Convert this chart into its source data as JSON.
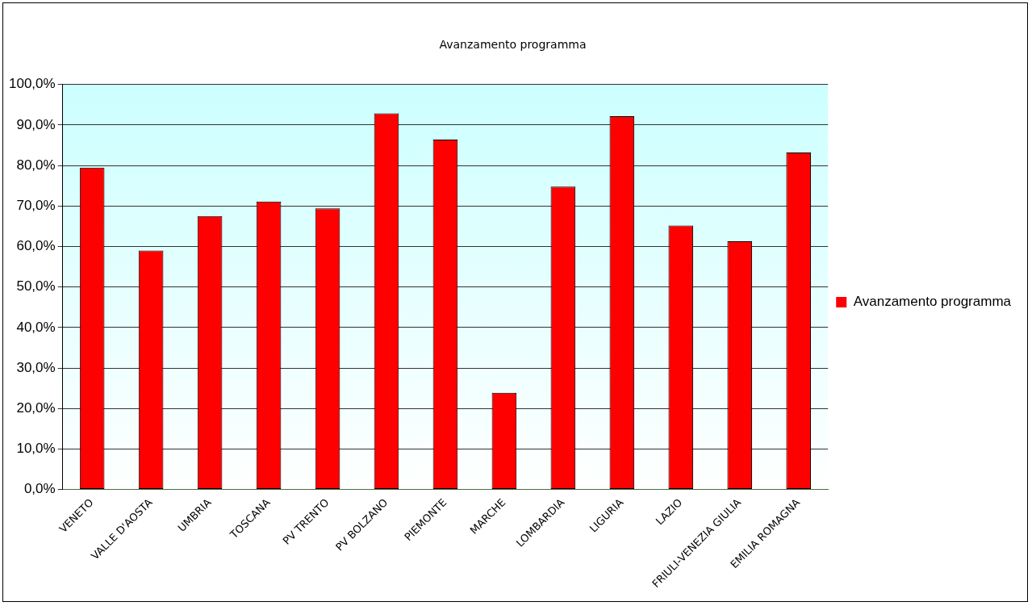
{
  "chart_data": {
    "type": "bar",
    "title": "Avanzamento programma",
    "categories": [
      "VENETO",
      "VALLE D'AOSTA",
      "UMBRIA",
      "TOSCANA",
      "PV TRENTO",
      "PV BOLZANO",
      "PIEMONTE",
      "MARCHE",
      "LOMBARDIA",
      "LIGURIA",
      "LAZIO",
      "FRIULI-VENEZIA GIULIA",
      "EMILIA ROMAGNA"
    ],
    "series": [
      {
        "name": "Avanzamento programma",
        "color": "#ff0000",
        "values": [
          79.5,
          59.0,
          67.5,
          71.1,
          69.4,
          92.9,
          86.4,
          23.9,
          74.8,
          92.2,
          65.2,
          61.3,
          83.2
        ]
      }
    ],
    "ylim": [
      0,
      100
    ],
    "yticks": [
      {
        "value": 0,
        "label": "0,0%"
      },
      {
        "value": 10,
        "label": "10,0%"
      },
      {
        "value": 20,
        "label": "20,0%"
      },
      {
        "value": 30,
        "label": "30,0%"
      },
      {
        "value": 40,
        "label": "40,0%"
      },
      {
        "value": 50,
        "label": "50,0%"
      },
      {
        "value": 60,
        "label": "60,0%"
      },
      {
        "value": 70,
        "label": "70,0%"
      },
      {
        "value": 80,
        "label": "80,0%"
      },
      {
        "value": 90,
        "label": "90,0%"
      },
      {
        "value": 100,
        "label": "100,0%"
      }
    ],
    "grid": "y",
    "legend": "right"
  }
}
